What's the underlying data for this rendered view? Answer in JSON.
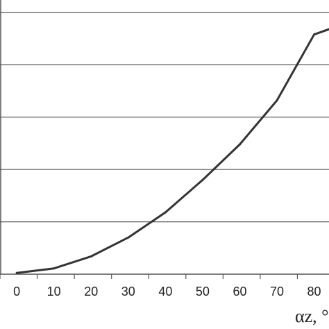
{
  "chart_data": {
    "type": "line",
    "x": [
      0,
      10,
      20,
      30,
      40,
      50,
      60,
      70,
      80,
      84
    ],
    "values": [
      0.12,
      0.55,
      1.7,
      3.5,
      5.9,
      9.0,
      12.4,
      16.6,
      22.9,
      23.4
    ],
    "xlim": [
      -4.5,
      84
    ],
    "ylim": [
      0,
      25
    ],
    "x_ticks": [
      "0",
      "10",
      "20",
      "30",
      "40",
      "50",
      "60",
      "70",
      "80"
    ],
    "y_gridlines": [
      0,
      5,
      10,
      15,
      20,
      25
    ],
    "grid": "horizontal",
    "xlabel": "αz, °",
    "series_color": "#333333",
    "grid_color": "#555555"
  }
}
